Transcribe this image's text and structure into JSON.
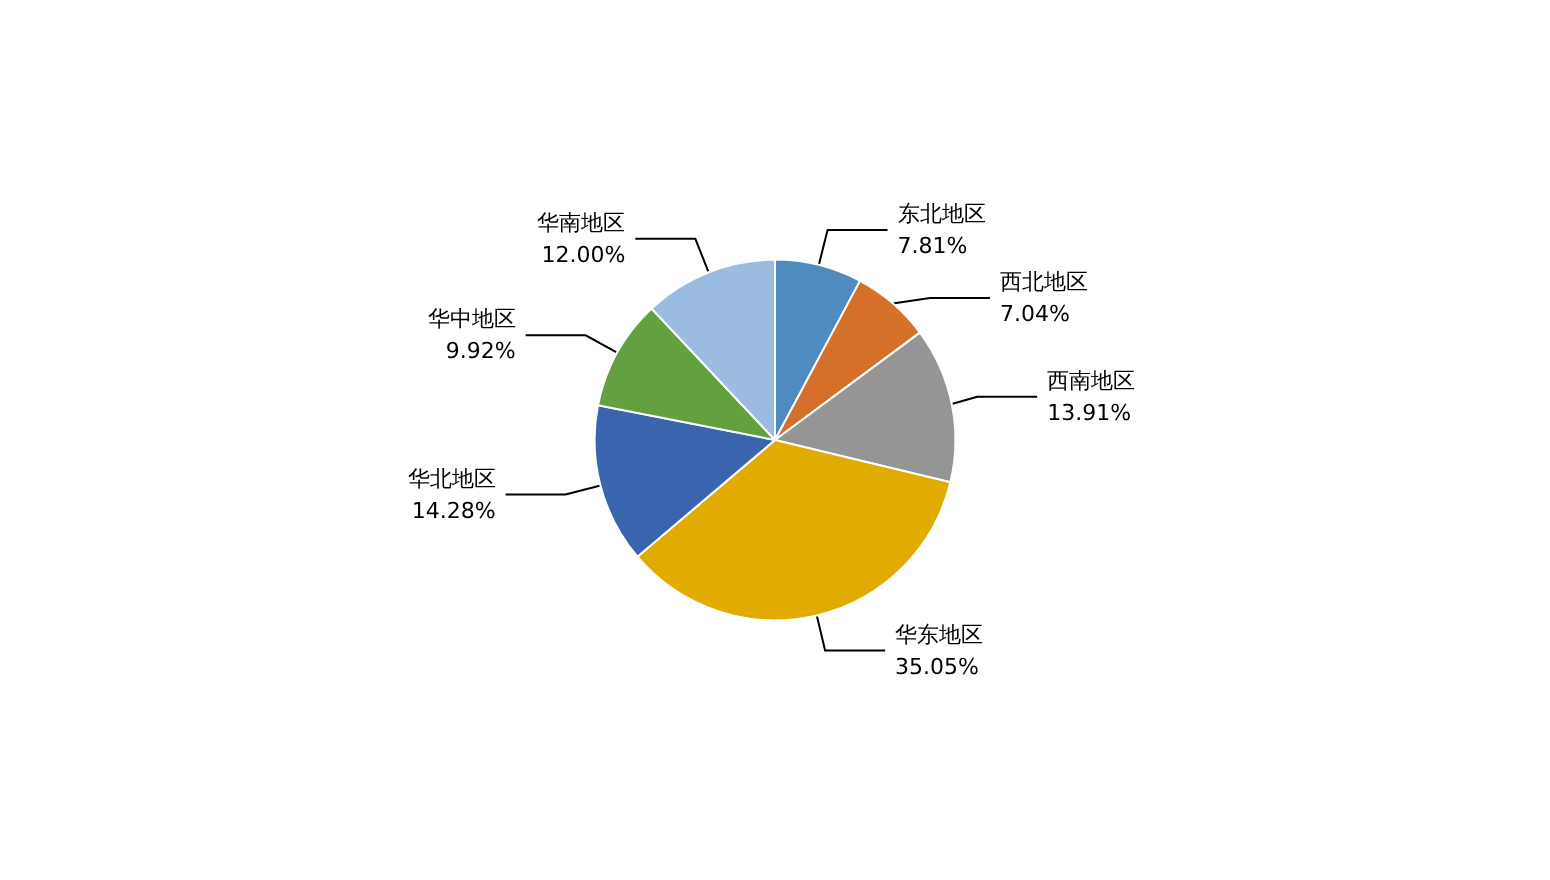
{
  "chart_data": {
    "type": "pie",
    "categories": [
      "东北地区",
      "西北地区",
      "西南地区",
      "华东地区",
      "华北地区",
      "华中地区",
      "华南地区"
    ],
    "values": [
      7.81,
      7.04,
      13.91,
      35.05,
      14.28,
      9.92,
      12.0
    ],
    "value_labels": [
      "7.81%",
      "7.04%",
      "13.91%",
      "35.05%",
      "14.28%",
      "9.92%",
      "12.00%"
    ],
    "colors": [
      "#4f8bc0",
      "#d4702a",
      "#959595",
      "#e2ab00",
      "#3b64ae",
      "#63a03f",
      "#9bbbe0"
    ],
    "legend": false
  }
}
